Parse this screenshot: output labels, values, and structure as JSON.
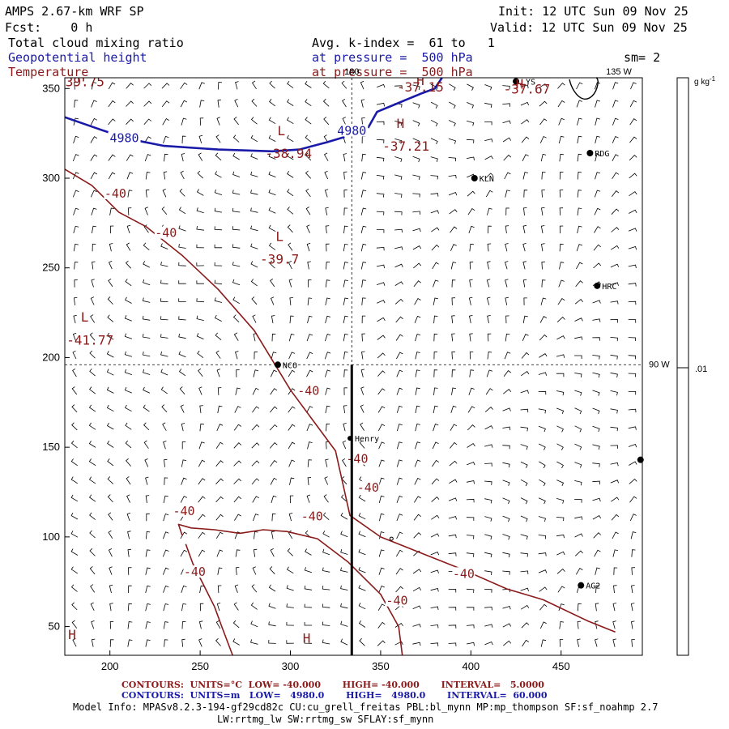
{
  "header": {
    "model": "AMPS 2.67-km WRF SP",
    "forecast": "Fcst:    0 h",
    "init": "Init: 12 UTC Sun 09 Nov 25",
    "valid": "Valid: 12 UTC Sun 09 Nov 25",
    "field1": "Total cloud mixing ratio",
    "field2": "Geopotential height",
    "field3": "Temperature",
    "avg": "Avg. k-index =  61 to   1",
    "pressure1": "at pressure =  500 hPa",
    "pressure2": "at pressure =  500 hPa",
    "sm": "sm= 2"
  },
  "colors": {
    "temp": "#8b1a1a",
    "height": "#1a1aa8",
    "axis": "#000000"
  },
  "chart_data": {
    "type": "contour",
    "xlim": [
      175,
      495
    ],
    "ylim": [
      34,
      356
    ],
    "x_ticks": [
      200,
      250,
      300,
      350,
      400,
      450
    ],
    "y_ticks": [
      50,
      100,
      150,
      200,
      250,
      300,
      350
    ],
    "meridian_labels": [
      {
        "text": "180",
        "x": 334,
        "y": 356
      },
      {
        "text": "135 W",
        "x": 482,
        "y": 356
      },
      {
        "text": "90 W",
        "x": 495,
        "y": 196
      }
    ],
    "colorbar": {
      "unit": "g kg-1",
      "label": ".01",
      "level": 0.01
    },
    "temperature_contours": {
      "level": -40,
      "lines": [
        [
          [
            175,
            305
          ],
          [
            190,
            296
          ],
          [
            205,
            281
          ],
          [
            220,
            273
          ],
          [
            240,
            257
          ],
          [
            260,
            238
          ],
          [
            280,
            215
          ],
          [
            300,
            182
          ],
          [
            325,
            148
          ],
          [
            333,
            112
          ],
          [
            350,
            100
          ],
          [
            370,
            92
          ],
          [
            395,
            82
          ],
          [
            420,
            71
          ],
          [
            440,
            65
          ],
          [
            465,
            53
          ],
          [
            480,
            47
          ]
        ],
        [
          [
            240,
            101
          ],
          [
            238,
            107
          ],
          [
            245,
            105
          ],
          [
            258,
            104
          ],
          [
            272,
            102
          ],
          [
            285,
            104
          ],
          [
            298,
            103
          ],
          [
            315,
            99
          ],
          [
            332,
            86
          ],
          [
            350,
            68
          ],
          [
            360,
            50
          ],
          [
            362,
            34
          ]
        ],
        [
          [
            242,
            96
          ],
          [
            246,
            85
          ],
          [
            252,
            73
          ],
          [
            258,
            61
          ],
          [
            262,
            50
          ],
          [
            268,
            34
          ]
        ]
      ],
      "labels": [
        {
          "text": "-40",
          "x": 203,
          "y": 291
        },
        {
          "text": "-40",
          "x": 231,
          "y": 269
        },
        {
          "text": "-40",
          "x": 310,
          "y": 181
        },
        {
          "text": "-40",
          "x": 337,
          "y": 143
        },
        {
          "text": "-40",
          "x": 343,
          "y": 127
        },
        {
          "text": "-40",
          "x": 312,
          "y": 111
        },
        {
          "text": "-40",
          "x": 396,
          "y": 79
        },
        {
          "text": "-40",
          "x": 359,
          "y": 64
        },
        {
          "text": "-40",
          "x": 247,
          "y": 80
        },
        {
          "text": "-40",
          "x": 241,
          "y": 114
        }
      ],
      "extrema": [
        {
          "kind": "L",
          "value": "-38.94",
          "x": 295,
          "y": 324,
          "vx": 299,
          "vy": 314
        },
        {
          "kind": "L",
          "value": "-39.7",
          "x": 294,
          "y": 265,
          "vx": 294,
          "vy": 255
        },
        {
          "kind": "L",
          "value": "-41.77",
          "x": 186,
          "y": 220,
          "vx": 189,
          "vy": 210
        },
        {
          "kind": "H",
          "value": "-37.21",
          "x": 361,
          "y": 328,
          "vx": 364,
          "vy": 318
        },
        {
          "kind": "H",
          "value": "-37.15",
          "x": 372,
          "y": 352,
          "vx": 372,
          "vy": 351
        },
        {
          "kind": "H",
          "value": "-37.67",
          "x": 427,
          "y": 350,
          "vx": 431,
          "vy": 350
        },
        {
          "kind": "H",
          "value": "",
          "x": 179,
          "y": 43,
          "vx": 179,
          "vy": 34
        },
        {
          "kind": "H",
          "value": "-39.75",
          "x": 184,
          "y": 354,
          "vx": 184,
          "vy": 354
        },
        {
          "kind": "H",
          "value": "",
          "x": 309,
          "y": 41,
          "vx": 309,
          "vy": 34
        }
      ]
    },
    "height_contours": {
      "level": 4980,
      "lines": [
        [
          [
            175,
            334
          ],
          [
            195,
            327
          ],
          [
            210,
            322
          ],
          [
            230,
            318
          ],
          [
            260,
            316
          ],
          [
            290,
            315
          ],
          [
            305,
            316
          ],
          [
            320,
            320
          ],
          [
            330,
            323
          ]
        ],
        [
          [
            343,
            328
          ],
          [
            348,
            337
          ],
          [
            360,
            342
          ],
          [
            372,
            347
          ],
          [
            380,
            350
          ],
          [
            384,
            356
          ]
        ]
      ],
      "labels": [
        {
          "text": "4980",
          "x": 208,
          "y": 322
        },
        {
          "text": "4980",
          "x": 334,
          "y": 326
        }
      ]
    },
    "stations": [
      {
        "name": "NCO",
        "x": 293,
        "y": 196
      },
      {
        "name": "Henry",
        "x": 333,
        "y": 155
      },
      {
        "name": "KLN",
        "x": 402,
        "y": 300
      },
      {
        "name": "RDG",
        "x": 466,
        "y": 314
      },
      {
        "name": "HRC",
        "x": 470,
        "y": 240
      },
      {
        "name": "AG2",
        "x": 461,
        "y": 73
      },
      {
        "name": "LYS",
        "x": 425,
        "y": 354
      },
      {
        "name": "",
        "x": 494,
        "y": 143
      }
    ],
    "cross_section": {
      "x": 334,
      "y_start": 196,
      "y_end": 34
    },
    "reference_lines": {
      "meridian_x": 334,
      "parallel_y": 196
    }
  },
  "footer": {
    "temp_contours": "CONTOURS:  UNITS=°C  LOW= -40.000       HIGH= -40.000       INTERVAL=   5.0000",
    "height_contours": "CONTOURS:  UNITS=m   LOW=   4980.0       HIGH=   4980.0       INTERVAL=  60.000",
    "model_info_1": "Model Info: MPASv8.2.3-194-gf29cd82c CU:cu_grell_freitas PBL:bl_mynn MP:mp_thompson SF:sf_noahmp 2.7",
    "model_info_2": "LW:rrtmg_lw SW:rrtmg_sw SFLAY:sf_mynn"
  }
}
